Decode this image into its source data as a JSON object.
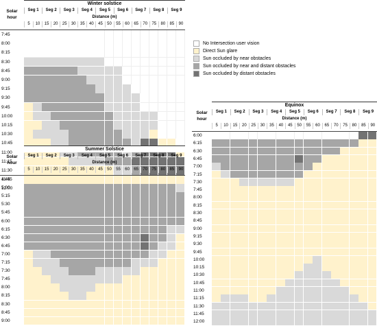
{
  "colors": {
    "none": "#ffffff",
    "glare": "#fff2cc",
    "near": "#d9d9d9",
    "near_distant": "#a6a6a6",
    "distant": "#737373"
  },
  "legend": [
    {
      "label": "No Intersection user vision",
      "code": "N"
    },
    {
      "label": "Direct Sun glare",
      "code": "Y"
    },
    {
      "label": "Sun occluded by near obstacles",
      "code": "L"
    },
    {
      "label": "Sun occluded by near and distant obstacles",
      "code": "M"
    },
    {
      "label": "Sun occluded by distant obstacles",
      "code": "D"
    }
  ],
  "common": {
    "solar": "Solar",
    "hour": "hour",
    "distance": "Distance (m)",
    "segments": [
      "Seg 1",
      "Seg 2",
      "Seg 3",
      "Seg 4",
      "Seg 5",
      "Seg 6",
      "Seg 7",
      "Seg 8",
      "Seg 9"
    ],
    "distances": [
      "5",
      "10",
      "15",
      "20",
      "25",
      "30",
      "35",
      "40",
      "45",
      "50",
      "55",
      "60",
      "65",
      "70",
      "75",
      "80",
      "85",
      "90"
    ]
  },
  "panels": [
    {
      "title": "Winter solstice",
      "hours": [
        "7:45",
        "8:00",
        "8:15",
        "8:30",
        "8:45",
        "9:00",
        "9:15",
        "9:30",
        "9:45",
        "10:00",
        "10:15",
        "10:30",
        "10:45",
        "11:00",
        "11:15",
        "11:30",
        "11:45",
        "12:00"
      ],
      "grid": [
        "NNNNNNNNNNNNNNNNNN",
        "NNNNNNNNNNNNNNNNNN",
        "NNNNNNNNNNNNNNNNNN",
        "LLLLLLLLLNNNNNNNNN",
        "MMMMMMLLLLLNNNNNNN",
        "MMMMMMMLLLLNNNNNNN",
        "MMMMMMMMLLLLNNNNNN",
        "MMMMMMMMMLLLLNNNNN",
        "YLMMMMMMMLLLLNNNNN",
        "YLLMMMMMMMLLLLLNNN",
        "YYLLMMMMMMLLLLLNNN",
        "YLLLLMMMMMMLLLYNNN",
        "YYYLLMMMMMMMLDDYYN",
        "YYYYLLMMMMMLMDDDDY",
        "YYYYYLLLLMMMDDDDDD",
        "YYYYYYYYYYLLMDDDDD",
        "YYYYYYYYYYYYLMMDDD",
        "YYYYYYYYYYYYYYYDDD"
      ]
    },
    {
      "title": "Summer Solstice",
      "hours": [
        "4:45",
        "5:00",
        "5:15",
        "5:30",
        "5:45",
        "6:00",
        "6:15",
        "6:30",
        "6:45",
        "7:00",
        "7:15",
        "7:30",
        "7:45",
        "8:00",
        "8:15",
        "8:30",
        "8:45",
        "9:00"
      ],
      "grid": [
        "YYYYYYYYYYYYYYYYYY",
        "MMMMMMMMMMMMMMMMML",
        "MMMMMMMMMMMMMMMMMM",
        "MMMMMMMMMMMMMMMMMM",
        "MMMMMMMMMMMMMMMMMM",
        "MMMMMMMMMMMMMMMMMM",
        "MMMMMMMMMMMMMMMMLL",
        "MMMMMMMMMMMMMDMMLY",
        "MMMMMMMMMMMMMDMLLY",
        "YLLMMMMMMMMMMMLLYY",
        "YLLLMMMMMMMMLLLYYY",
        "YYLLLMMMLLLLLYYYYY",
        "YYYLLLLLLLLYYYYYYY",
        "YYYYLLLLYYYYYYYYYY",
        "YYYYYLLYYYYYYYYYYY",
        "YYYYYYYYYYYYYYYYYY",
        "YYYYYYYYYYYYYYYYYY",
        "YYYYYYYYYYYYYYYYYY"
      ]
    },
    {
      "title": "Equinox",
      "hours": [
        "6:00",
        "6:15",
        "6:30",
        "6:45",
        "7:00",
        "7:15",
        "7:30",
        "7:45",
        "8:00",
        "8:15",
        "8:30",
        "8:45",
        "9:00",
        "9:15",
        "9:30",
        "9:45",
        "10:00",
        "10:15",
        "10:30",
        "10:45",
        "11:00",
        "11:15",
        "11:30",
        "11:45",
        "12:00"
      ],
      "grid": [
        "NNNNNNNNNNNNNNNNDD",
        "MMMMMMMMMMMMMMMMYY",
        "MMMMMMMMMMMMMMYYYY",
        "MMMMMMMMMDMMYYYYYY",
        "LMMMMMMMMMMYYYYYYY",
        "YLMMMMMMMMYYYYYYYY",
        "YYYLLLLLLYYYYYYYYY",
        "YYYYYYYYYYYYYYYYYY",
        "YYYYYYYYYYYYYYYYYY",
        "YYYYYYYYYYYYYYYYYY",
        "YYYYYYYYYYYYYYYYYY",
        "YYYYYYYYYYYYYYYYYY",
        "YYYYYYYYYYYYYYYYYY",
        "YYYYYYYYYYYYYYYYYY",
        "YYYYYYYYYYYYYYYYYY",
        "YYYYYYYYYYYYYYYYYY",
        "YYYYYYYYYYYLYYYYYY",
        "YYYYYYYYYYLLYYYYYY",
        "YYYYYYYYYLLLLYYYYY",
        "YYYYYYYYLLLLLLYYYY",
        "YYYYYYYLLLLLLLLYYY",
        "YLLLYYLLLLLLLLLLYY",
        "LLLLLLLLLLLLLLLLLY",
        "LLLLLLLLLLLLLLLLLL",
        "LLLLLLLLLLLLLLLLLL"
      ]
    }
  ]
}
